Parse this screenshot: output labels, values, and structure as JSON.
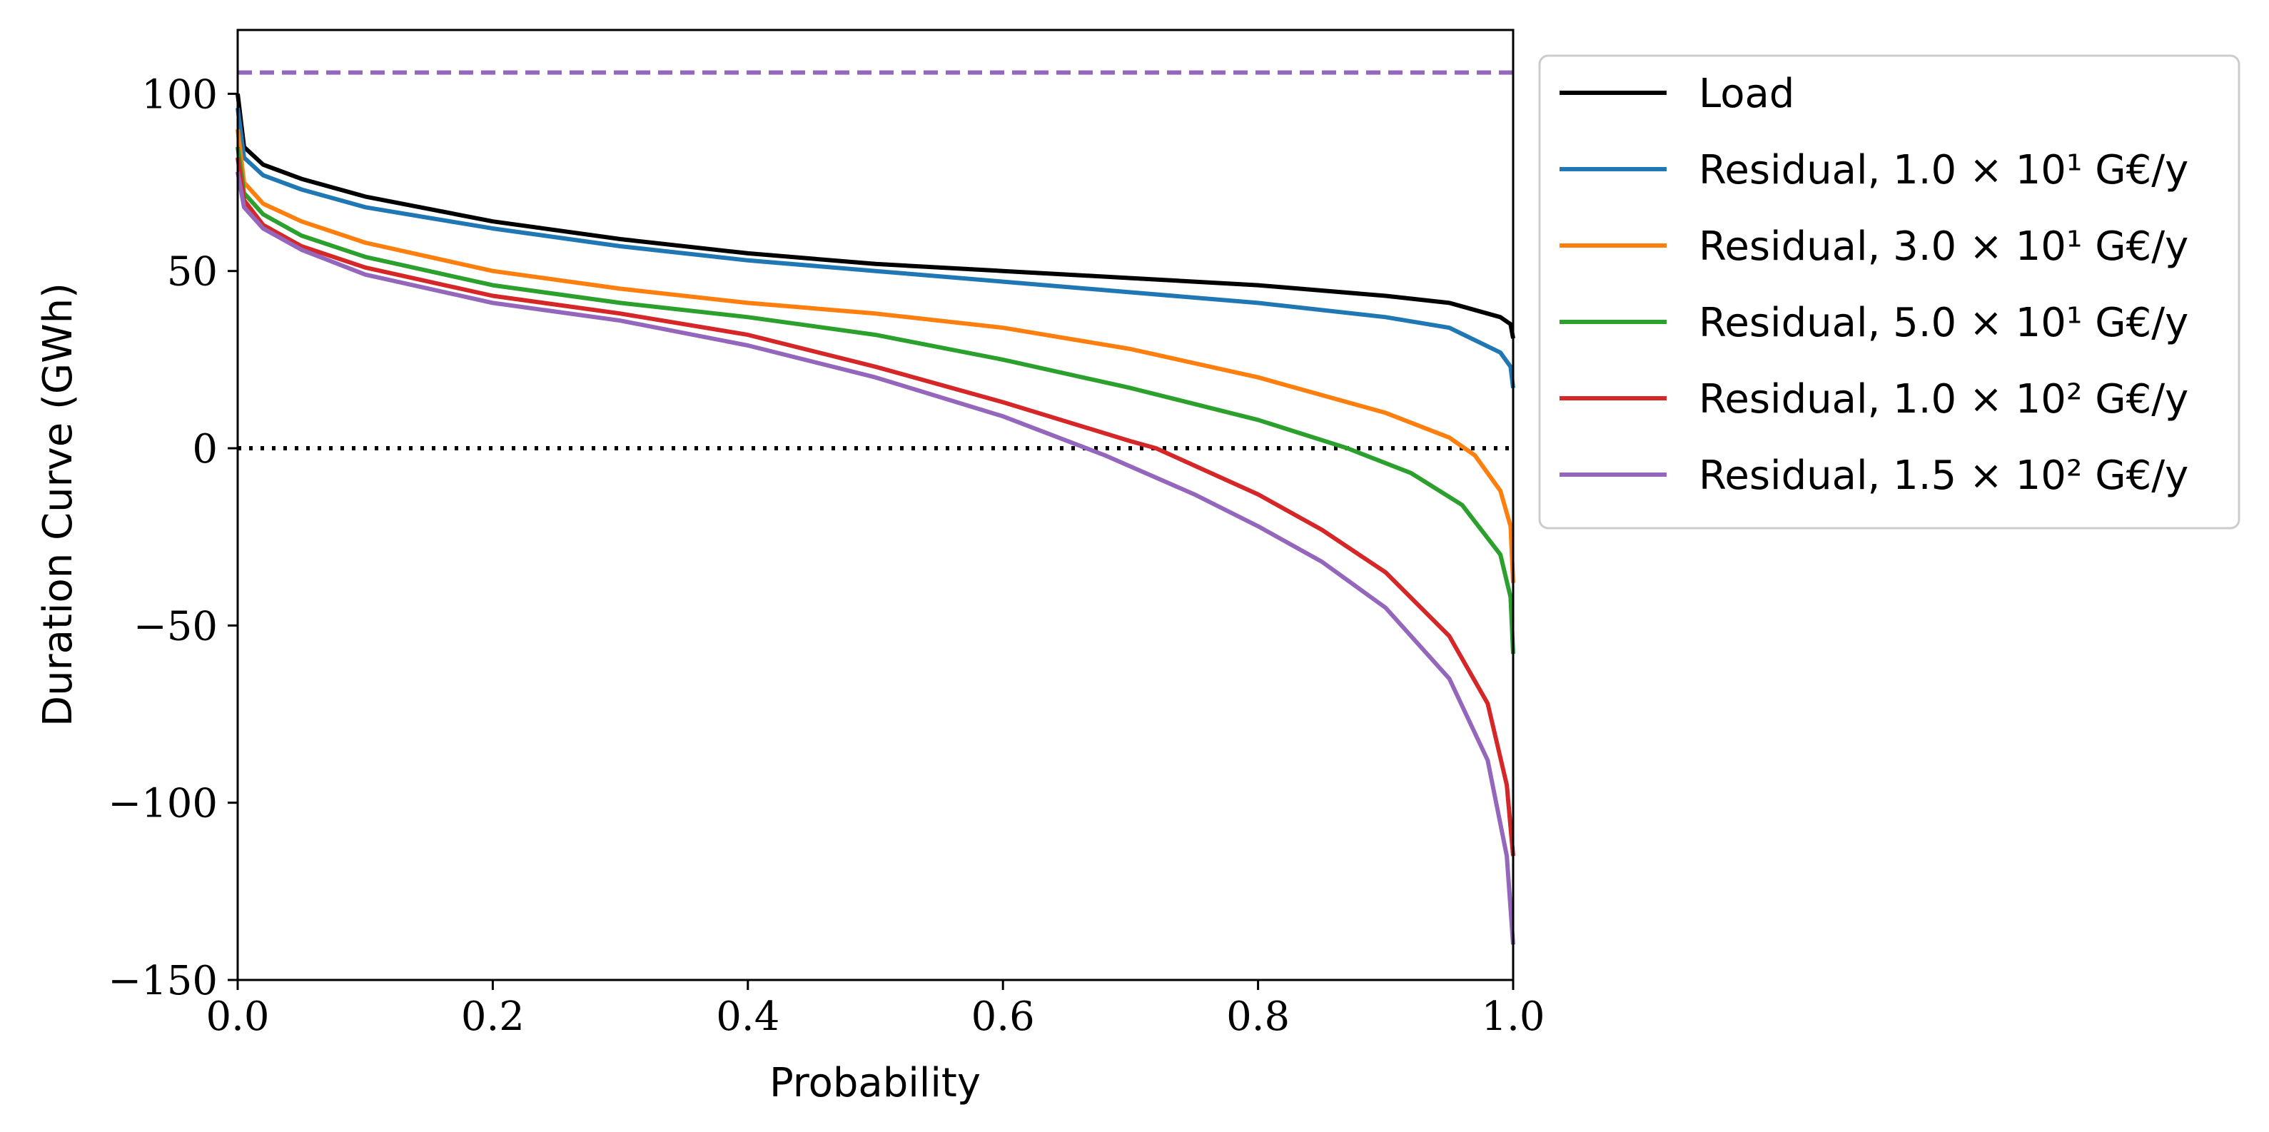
{
  "chart_data": {
    "type": "line",
    "title": "",
    "xlabel": "Probability",
    "ylabel": "Duration Curve (GWh)",
    "xlim": [
      0.0,
      1.0
    ],
    "ylim": [
      -150,
      118
    ],
    "xticks": [
      0.0,
      0.2,
      0.4,
      0.6,
      0.8,
      1.0
    ],
    "xtick_labels": [
      "0.0",
      "0.2",
      "0.4",
      "0.6",
      "0.8",
      "1.0"
    ],
    "yticks": [
      100,
      50,
      0,
      -50,
      -100,
      -150
    ],
    "ytick_labels": [
      "100",
      "50",
      "0",
      "−50",
      "−100",
      "−150"
    ],
    "grid": false,
    "legend_position": "outside right, top",
    "reference_lines": [
      {
        "name": "zero-line",
        "y": 0,
        "color": "#000000",
        "style": "dotted"
      },
      {
        "name": "capacity-line",
        "y": 106,
        "color": "#9467bd",
        "style": "dashed"
      }
    ],
    "series": [
      {
        "name": "Load",
        "color": "#000000",
        "x": [
          0,
          0.005,
          0.02,
          0.05,
          0.1,
          0.2,
          0.3,
          0.4,
          0.5,
          0.6,
          0.7,
          0.8,
          0.9,
          0.95,
          0.99,
          0.998,
          1.0
        ],
        "y": [
          100,
          85,
          80,
          76,
          71,
          64,
          59,
          55,
          52,
          50,
          48,
          46,
          43,
          41,
          37,
          35,
          31
        ]
      },
      {
        "name": "Residual, 1.0 × 10¹ G€/y",
        "color": "#1f77b4",
        "x": [
          0,
          0.005,
          0.02,
          0.05,
          0.1,
          0.2,
          0.3,
          0.4,
          0.5,
          0.6,
          0.7,
          0.8,
          0.9,
          0.95,
          0.99,
          0.998,
          1.0
        ],
        "y": [
          96,
          82,
          77,
          73,
          68,
          62,
          57,
          53,
          50,
          47,
          44,
          41,
          37,
          34,
          27,
          23,
          17
        ]
      },
      {
        "name": "Residual, 3.0 × 10¹ G€/y",
        "color": "#ff7f0e",
        "x": [
          0,
          0.005,
          0.02,
          0.05,
          0.1,
          0.2,
          0.3,
          0.4,
          0.5,
          0.6,
          0.7,
          0.8,
          0.9,
          0.95,
          0.97,
          0.99,
          0.998,
          1.0
        ],
        "y": [
          90,
          75,
          69,
          64,
          58,
          50,
          45,
          41,
          38,
          34,
          28,
          20,
          10,
          3,
          -2,
          -12,
          -22,
          -38
        ]
      },
      {
        "name": "Residual, 5.0 × 10¹ G€/y",
        "color": "#2ca02c",
        "x": [
          0,
          0.005,
          0.02,
          0.05,
          0.1,
          0.2,
          0.3,
          0.4,
          0.5,
          0.6,
          0.7,
          0.8,
          0.87,
          0.92,
          0.96,
          0.99,
          0.998,
          1.0
        ],
        "y": [
          85,
          72,
          66,
          60,
          54,
          46,
          41,
          37,
          32,
          25,
          17,
          8,
          0,
          -7,
          -16,
          -30,
          -42,
          -58
        ]
      },
      {
        "name": "Residual, 1.0 × 10² G€/y",
        "color": "#d62728",
        "x": [
          0,
          0.005,
          0.02,
          0.05,
          0.1,
          0.2,
          0.3,
          0.4,
          0.5,
          0.6,
          0.7,
          0.72,
          0.8,
          0.85,
          0.9,
          0.95,
          0.98,
          0.995,
          1.0
        ],
        "y": [
          82,
          70,
          63,
          57,
          51,
          43,
          38,
          32,
          23,
          13,
          2,
          0,
          -13,
          -23,
          -35,
          -53,
          -72,
          -95,
          -115
        ]
      },
      {
        "name": "Residual, 1.5 × 10² G€/y",
        "color": "#9467bd",
        "x": [
          0,
          0.005,
          0.02,
          0.05,
          0.1,
          0.2,
          0.3,
          0.4,
          0.5,
          0.6,
          0.68,
          0.75,
          0.8,
          0.85,
          0.9,
          0.95,
          0.98,
          0.995,
          1.0
        ],
        "y": [
          78,
          68,
          62,
          56,
          49,
          41,
          36,
          29,
          20,
          9,
          -2,
          -13,
          -22,
          -32,
          -45,
          -65,
          -88,
          -115,
          -140
        ]
      }
    ]
  }
}
